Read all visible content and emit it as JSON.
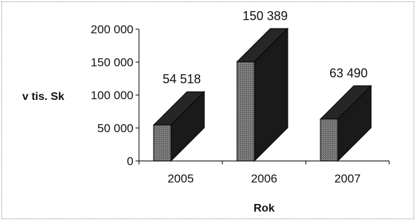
{
  "chart_data": {
    "type": "bar",
    "style": "3d-column",
    "title": "",
    "xlabel": "Rok",
    "ylabel": "v tis. Sk",
    "categories": [
      "2005",
      "2006",
      "2007"
    ],
    "values": [
      54518,
      150389,
      63490
    ],
    "data_labels": [
      "54 518",
      "150 389",
      "63 490"
    ],
    "ylim": [
      0,
      200000
    ],
    "yticks": [
      0,
      50000,
      100000,
      150000,
      200000
    ],
    "ytick_labels": [
      "0",
      "50 000",
      "100 000",
      "150 000",
      "200 000"
    ],
    "grid": false,
    "legend": "none",
    "colors": {
      "front": "#6e6e6e",
      "side": "#1a1a1a",
      "top": "#262626"
    }
  }
}
